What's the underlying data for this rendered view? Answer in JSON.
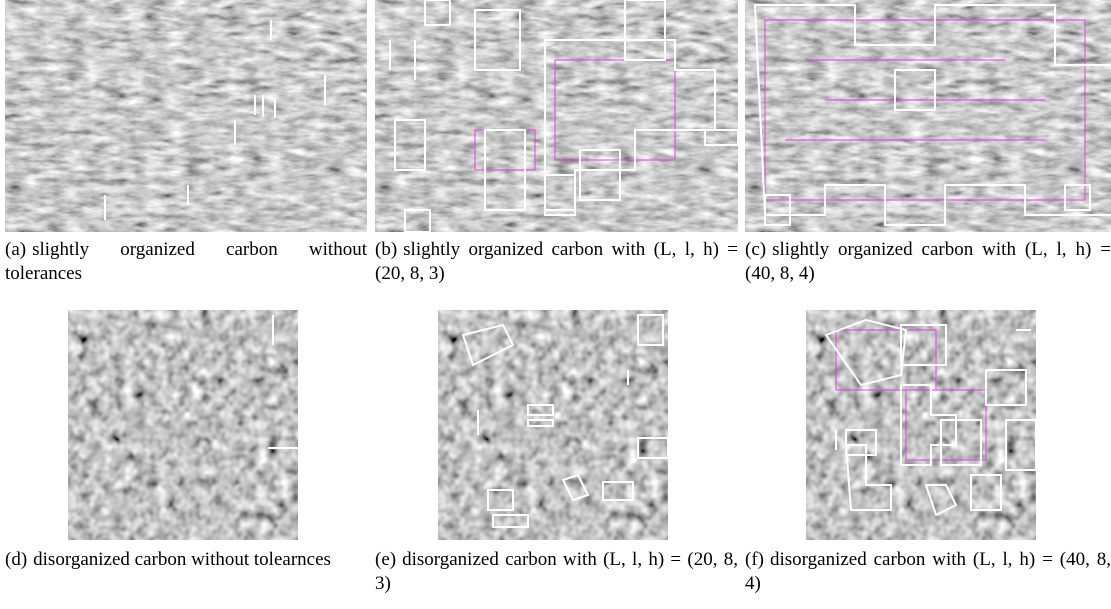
{
  "panels": [
    {
      "label": "(a)",
      "text": "slightly organized carbon without tolerances"
    },
    {
      "label": "(b)",
      "text": "slightly organized carbon with (L, l, h) = (20, 8, 3)"
    },
    {
      "label": "(c)",
      "text": "slightly organized carbon with (L, l, h) = (40, 8, 4)"
    },
    {
      "label": "(d)",
      "text": "disorganized carbon without tolearnces"
    },
    {
      "label": "(e)",
      "text": "disorganized carbon with (L, l, h) = (20, 8, 3)"
    },
    {
      "label": "(f)",
      "text": "disorganized carbon with (L, l, h) = (40, 8, 4)"
    }
  ]
}
